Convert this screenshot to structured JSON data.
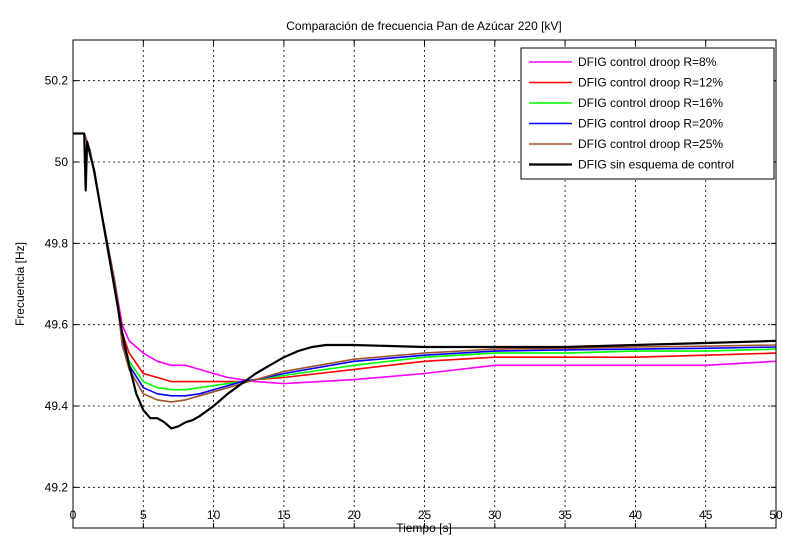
{
  "chart_data": {
    "type": "line",
    "title": "Comparación de frecuencia Pan de Azúcar 220 [kV]",
    "xlabel": "Tiempo [s]",
    "ylabel": "Frecuencia [Hz]",
    "xlim": [
      0,
      50
    ],
    "ylim": [
      49.1,
      50.3
    ],
    "xticks": [
      "0",
      "5",
      "10",
      "15",
      "20",
      "25",
      "30",
      "35",
      "40",
      "45",
      "50"
    ],
    "yticks": [
      "49.2",
      "49.4",
      "49.6",
      "49.8",
      "50",
      "50.2"
    ],
    "grid": true,
    "legend_position": "top-right",
    "series": [
      {
        "name": "DFIG control droop R=8%",
        "color": "#ff00ff",
        "x": [
          0,
          0.8,
          1.2,
          2,
          3,
          3.5,
          4,
          5,
          6,
          7,
          8,
          9,
          10,
          11,
          12,
          13,
          15,
          20,
          25,
          30,
          35,
          40,
          45,
          50
        ],
        "y": [
          50.07,
          50.07,
          50.03,
          49.88,
          49.7,
          49.6,
          49.56,
          49.53,
          49.51,
          49.5,
          49.5,
          49.49,
          49.48,
          49.47,
          49.465,
          49.46,
          49.455,
          49.465,
          49.48,
          49.5,
          49.5,
          49.5,
          49.5,
          49.51
        ]
      },
      {
        "name": "DFIG control droop R=12%",
        "color": "#ff0000",
        "x": [
          0,
          0.8,
          1.2,
          2,
          3,
          3.5,
          4,
          5,
          6,
          7,
          8,
          9,
          10,
          11,
          12,
          13,
          15,
          20,
          25,
          30,
          35,
          40,
          45,
          50
        ],
        "y": [
          50.07,
          50.07,
          50.03,
          49.88,
          49.7,
          49.58,
          49.53,
          49.48,
          49.47,
          49.46,
          49.46,
          49.46,
          49.46,
          49.46,
          49.46,
          49.465,
          49.47,
          49.49,
          49.51,
          49.52,
          49.52,
          49.52,
          49.525,
          49.53
        ]
      },
      {
        "name": "DFIG control droop R=16%",
        "color": "#00ff00",
        "x": [
          0,
          0.8,
          1.2,
          2,
          3,
          3.5,
          4,
          5,
          6,
          7,
          8,
          9,
          10,
          11,
          12,
          13,
          15,
          20,
          25,
          30,
          35,
          40,
          45,
          50
        ],
        "y": [
          50.07,
          50.07,
          50.03,
          49.88,
          49.7,
          49.57,
          49.51,
          49.46,
          49.445,
          49.44,
          49.44,
          49.445,
          49.45,
          49.455,
          49.46,
          49.465,
          49.475,
          49.5,
          49.52,
          49.53,
          49.53,
          49.535,
          49.535,
          49.54
        ]
      },
      {
        "name": "DFIG control droop R=20%",
        "color": "#0000ff",
        "x": [
          0,
          0.8,
          1.2,
          2,
          3,
          3.5,
          4,
          5,
          6,
          7,
          8,
          9,
          10,
          11,
          12,
          13,
          15,
          20,
          25,
          30,
          35,
          40,
          45,
          50
        ],
        "y": [
          50.07,
          50.07,
          50.03,
          49.88,
          49.7,
          49.56,
          49.5,
          49.445,
          49.43,
          49.425,
          49.425,
          49.43,
          49.44,
          49.45,
          49.46,
          49.465,
          49.48,
          49.51,
          49.525,
          49.535,
          49.538,
          49.54,
          49.542,
          49.545
        ]
      },
      {
        "name": "DFIG control droop R=25%",
        "color": "#a0522d",
        "x": [
          0,
          0.8,
          1.2,
          2,
          3,
          3.5,
          4,
          5,
          6,
          7,
          8,
          9,
          10,
          11,
          12,
          13,
          15,
          20,
          25,
          30,
          35,
          40,
          45,
          50
        ],
        "y": [
          50.07,
          50.07,
          50.03,
          49.88,
          49.7,
          49.55,
          49.49,
          49.43,
          49.415,
          49.41,
          49.415,
          49.425,
          49.435,
          49.445,
          49.455,
          49.465,
          49.485,
          49.515,
          49.53,
          49.54,
          49.542,
          49.545,
          49.547,
          49.55
        ]
      },
      {
        "name": "DFIG sin esquema de control",
        "color": "#000000",
        "x": [
          0,
          0.8,
          0.9,
          1.0,
          1.2,
          1.5,
          2,
          2.5,
          3,
          3.5,
          4,
          4.5,
          5,
          5.5,
          6,
          6.5,
          7,
          7.5,
          8,
          8.5,
          9,
          10,
          11,
          12,
          13,
          14,
          15,
          16,
          17,
          18,
          20,
          25,
          30,
          35,
          40,
          45,
          50
        ],
        "y": [
          50.07,
          50.07,
          49.93,
          50.05,
          50.02,
          49.98,
          49.88,
          49.78,
          49.68,
          49.58,
          49.5,
          49.43,
          49.39,
          49.37,
          49.37,
          49.36,
          49.345,
          49.35,
          49.36,
          49.365,
          49.375,
          49.4,
          49.43,
          49.455,
          49.48,
          49.5,
          49.52,
          49.535,
          49.545,
          49.55,
          49.55,
          49.545,
          49.545,
          49.545,
          49.55,
          49.555,
          49.56
        ]
      }
    ]
  }
}
